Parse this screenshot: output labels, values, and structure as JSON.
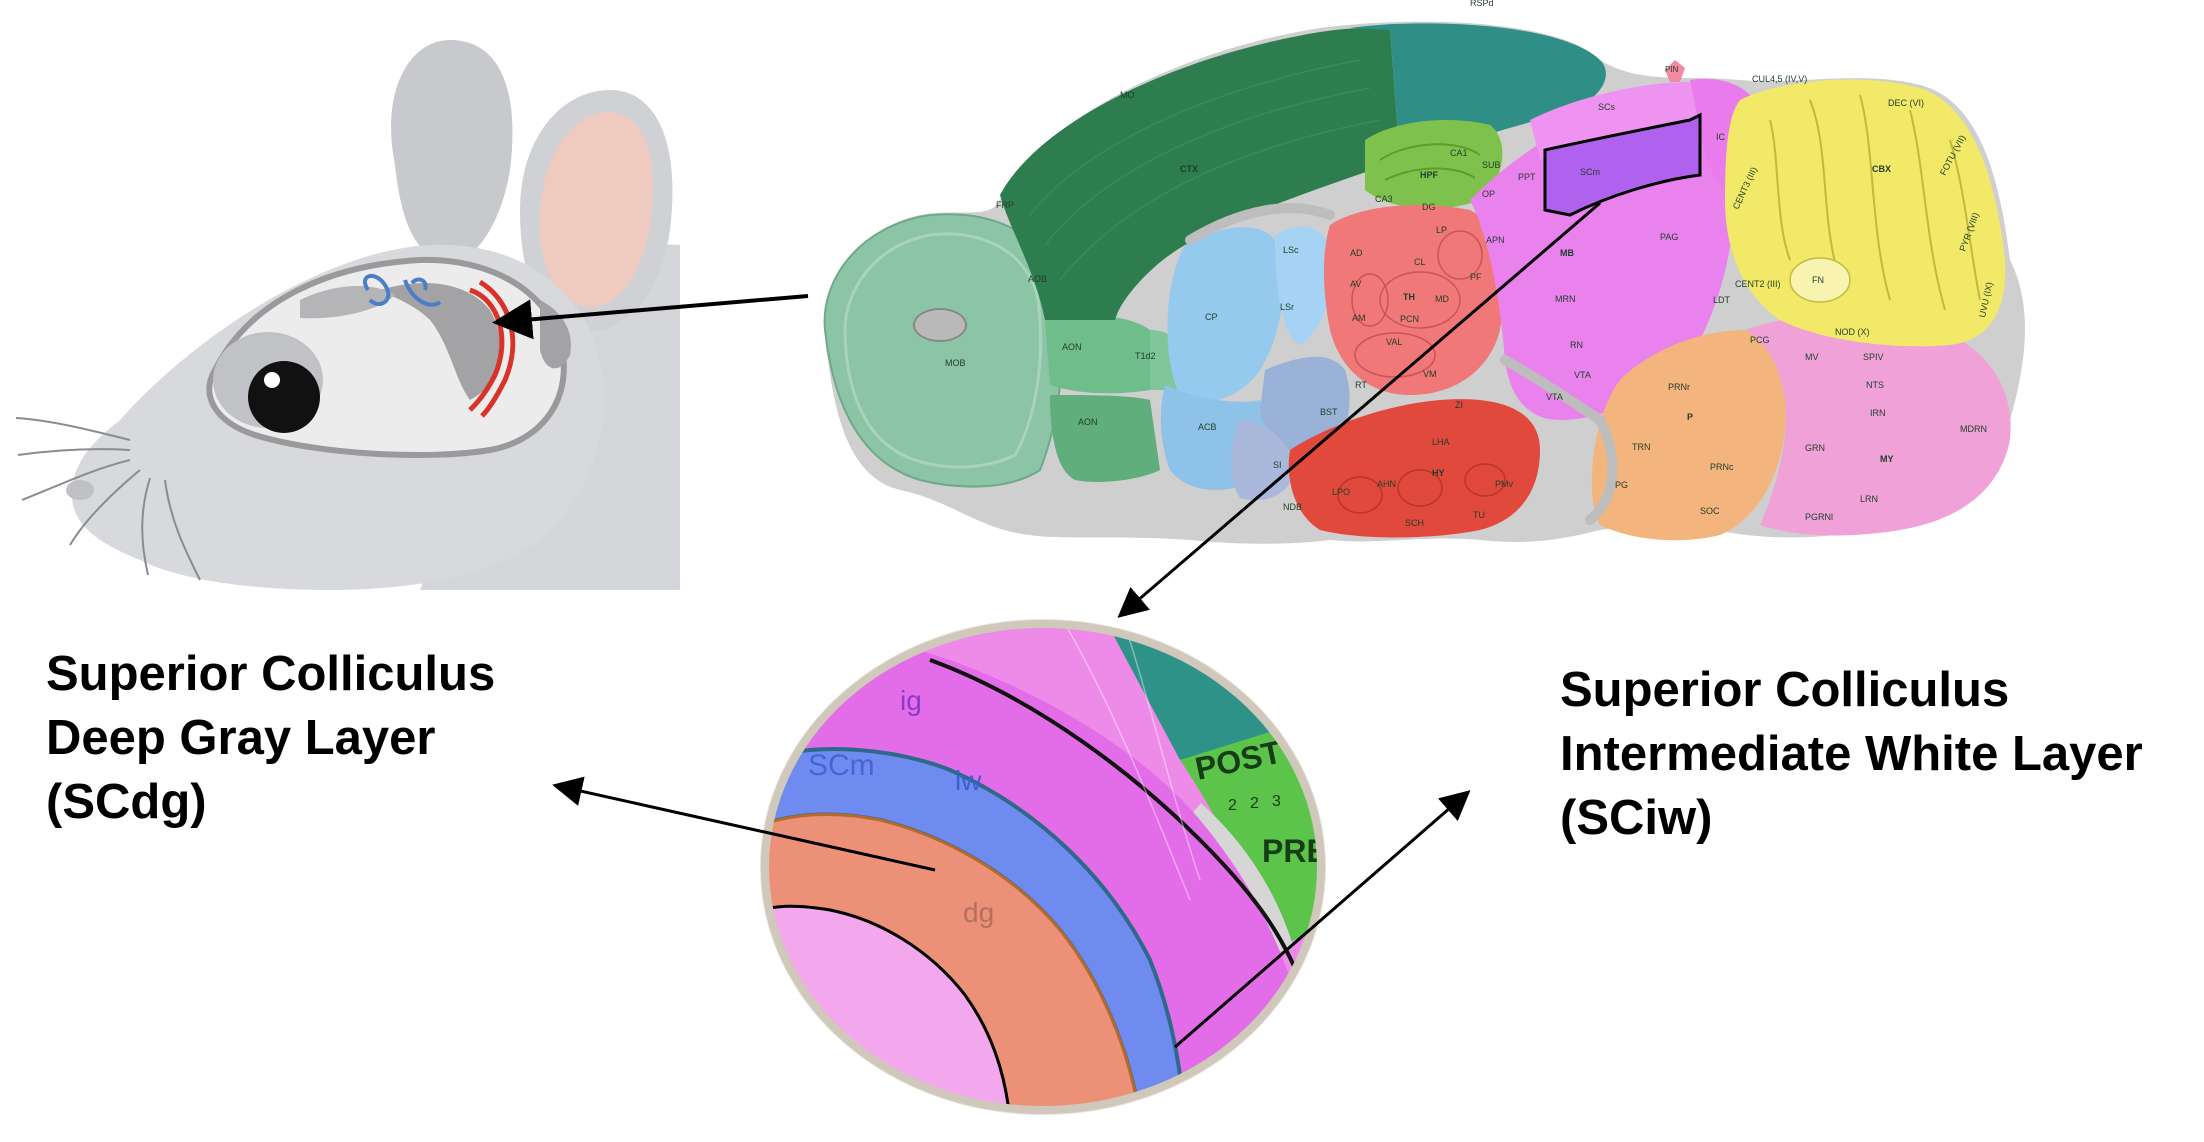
{
  "captions": {
    "left": {
      "line1": "Superior Colliculus",
      "line2": "Deep Gray Layer",
      "line3": "(SCdg)"
    },
    "right": {
      "line1": "Superior Colliculus",
      "line2": "Intermediate White Layer",
      "line3": "(SCiw)"
    }
  },
  "atlas": {
    "regions": {
      "ctx": "CTX",
      "mo": "MO",
      "rspd": "RSPd",
      "frp": "FRP",
      "aob": "AOB",
      "mob": "MOB",
      "aon1": "AON",
      "aon2": "AON",
      "td2": "T1d2",
      "cp": "CP",
      "acb": "ACB",
      "lsc": "LSc",
      "lsr": "LSr",
      "bst": "BST",
      "si": "SI",
      "ndb": "NDB",
      "hpf": "HPF",
      "ca1": "CA1",
      "ca3": "CA3",
      "dg": "DG",
      "sub": "SUB",
      "th": "TH",
      "cl": "CL",
      "lp": "LP",
      "ad": "AD",
      "av": "AV",
      "am": "AM",
      "md": "MD",
      "val": "VAL",
      "vm": "VM",
      "pcn": "PCN",
      "rt": "RT",
      "pf": "PF",
      "hy": "HY",
      "lha": "LHA",
      "ahn": "AHN",
      "lpo": "LPO",
      "pmv": "PMv",
      "tu": "TU",
      "zi": "ZI",
      "sch": "SCH",
      "scs": "SCs",
      "scm": "SCm",
      "ic": "IC",
      "pin": "PIN",
      "pag": "PAG",
      "mb": "MB",
      "mrn": "MRN",
      "rn": "RN",
      "vta1": "VTA",
      "vta2": "VTA",
      "ldt": "LDT",
      "pcg": "PCG",
      "prnr": "PRNr",
      "p": "P",
      "trn": "TRN",
      "prnc": "PRNc",
      "pg": "PG",
      "soc": "SOC",
      "cbx": "CBX",
      "fn": "FN",
      "cul": "CUL4,5 (IV,V)",
      "dec": "DEC (VI)",
      "folv": "FOTU (VII)",
      "pyr": "PYR (VIII)",
      "uvu": "UVU (IX)",
      "nod": "NOD (X)",
      "cent3": "CENT3 (III)",
      "cent2": "CENT2 (III)",
      "mv": "MV",
      "spiv": "SPIV",
      "nts": "NTS",
      "irn": "IRN",
      "grn": "GRN",
      "my": "MY",
      "mdrn": "MDRN",
      "lrn": "LRN",
      "pgrnl": "PGRNl",
      "apn": "APN",
      "opt": "OP",
      "ppt": "PPT"
    }
  },
  "zoom": {
    "labels": {
      "ig": "ig",
      "scm": "SCm",
      "iw": "iw",
      "dg": "dg",
      "post": "POST",
      "pre": "PRE",
      "two_a": "2",
      "two_b": "2",
      "three": "3"
    }
  },
  "colors": {
    "cortex_dark": "#2e7d4f",
    "cortex_teal": "#2f8f86",
    "olfactory": "#8cc5a6",
    "striatum": "#95c9ee",
    "pallidum": "#9ab2d8",
    "hippocampus": "#7ec24d",
    "thalamus": "#f07878",
    "hypothalamus": "#e2493d",
    "midbrain": "#ea82ee",
    "scm_highlight": "#b061ee",
    "pons": "#f3b57d",
    "medulla": "#f0a2d8",
    "cerebellum": "#f2e968",
    "fiber": "#c8c8c8",
    "scdg": "#ec9178",
    "sciw": "#6f8bf0"
  }
}
